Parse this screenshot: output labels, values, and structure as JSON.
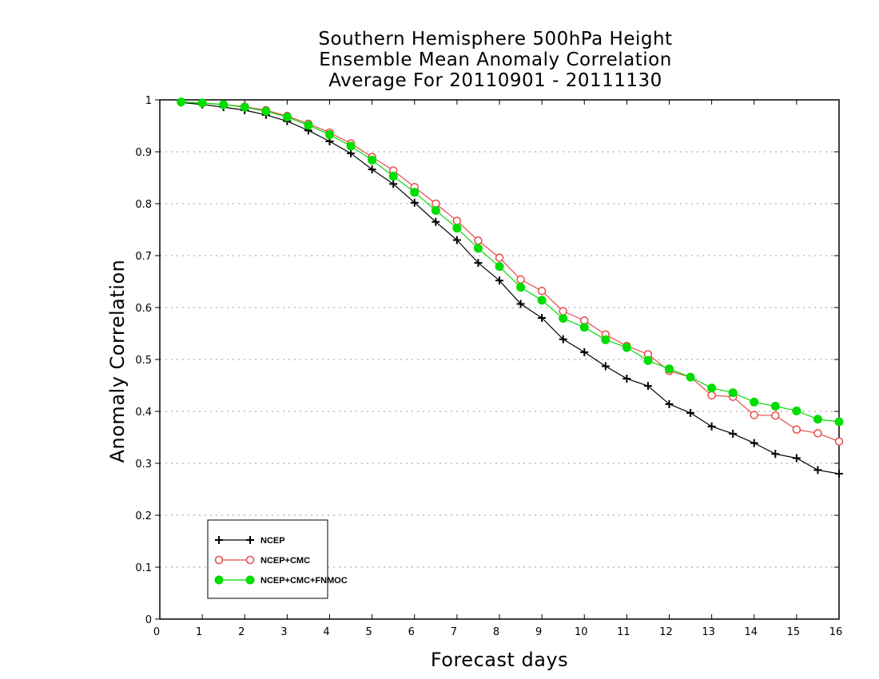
{
  "chart_data": {
    "type": "line",
    "title_lines": [
      "Southern Hemisphere 500hPa Height",
      "Ensemble Mean Anomaly Correlation",
      "Average For 20110901 - 20111130"
    ],
    "xlabel": "Forecast days",
    "ylabel": "Anomaly Correlation",
    "xlim": [
      0,
      16
    ],
    "ylim": [
      0,
      1
    ],
    "xticks": [
      "0",
      "1",
      "2",
      "3",
      "4",
      "5",
      "6",
      "7",
      "8",
      "9",
      "10",
      "11",
      "12",
      "13",
      "14",
      "15",
      "16"
    ],
    "yticks": [
      "0",
      "0.1",
      "0.2",
      "0.3",
      "0.4",
      "0.5",
      "0.6",
      "0.7",
      "0.8",
      "0.9",
      "1"
    ],
    "grid": true,
    "legend_position": "bottom-left",
    "x": [
      0.5,
      1,
      1.5,
      2,
      2.5,
      3,
      3.5,
      4,
      4.5,
      5,
      5.5,
      6,
      6.5,
      7,
      7.5,
      8,
      8.5,
      9,
      9.5,
      10,
      10.5,
      11,
      11.5,
      12,
      12.5,
      13,
      13.5,
      14,
      14.5,
      15,
      15.5,
      16
    ],
    "series": [
      {
        "name": "NCEP",
        "color": "#000000",
        "marker": "plus",
        "values": [
          0.995,
          0.991,
          0.986,
          0.98,
          0.971,
          0.959,
          0.941,
          0.92,
          0.897,
          0.866,
          0.838,
          0.802,
          0.765,
          0.73,
          0.686,
          0.652,
          0.607,
          0.58,
          0.539,
          0.514,
          0.487,
          0.463,
          0.449,
          0.414,
          0.397,
          0.371,
          0.357,
          0.339,
          0.318,
          0.31,
          0.287,
          0.28
        ]
      },
      {
        "name": "NCEP+CMC",
        "color": "#e84848",
        "marker": "open-circle",
        "values": [
          0.996,
          0.994,
          0.991,
          0.987,
          0.98,
          0.969,
          0.954,
          0.937,
          0.916,
          0.89,
          0.864,
          0.832,
          0.8,
          0.767,
          0.729,
          0.696,
          0.654,
          0.632,
          0.593,
          0.575,
          0.548,
          0.526,
          0.51,
          0.478,
          0.466,
          0.431,
          0.428,
          0.393,
          0.392,
          0.365,
          0.358,
          0.342
        ]
      },
      {
        "name": "NCEP+CMC+FNMOC",
        "color": "#00dd00",
        "marker": "filled-circle",
        "values": [
          0.996,
          0.994,
          0.991,
          0.986,
          0.978,
          0.967,
          0.951,
          0.933,
          0.911,
          0.884,
          0.853,
          0.822,
          0.787,
          0.753,
          0.714,
          0.679,
          0.639,
          0.614,
          0.579,
          0.562,
          0.538,
          0.523,
          0.498,
          0.482,
          0.466,
          0.445,
          0.436,
          0.418,
          0.41,
          0.401,
          0.385,
          0.38
        ]
      }
    ]
  }
}
